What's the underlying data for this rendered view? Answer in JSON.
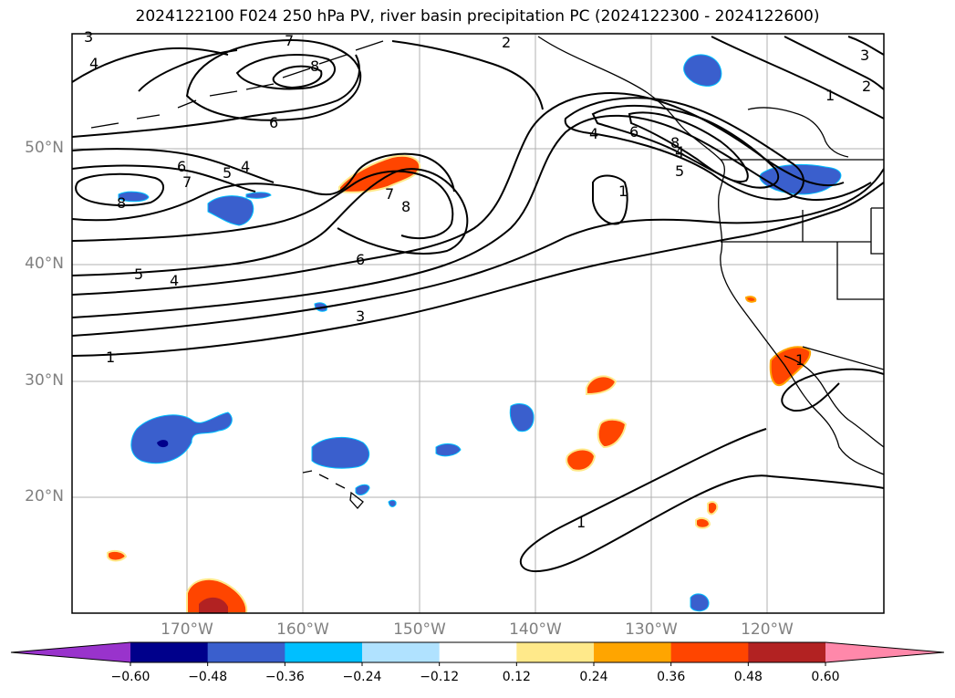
{
  "title": "2024122100 F024 250 hPa PV, river basin precipitation PC (2024122300 - 2024122600)",
  "lat_labels": [
    "50°N",
    "40°N",
    "30°N",
    "20°N"
  ],
  "lon_labels": [
    "170°W",
    "160°W",
    "150°W",
    "140°W",
    "130°W",
    "120°W"
  ],
  "contour_labels": [
    "3",
    "4",
    "8",
    "7",
    "2",
    "3",
    "1",
    "2",
    "6",
    "4",
    "6",
    "6",
    "8",
    "5",
    "4",
    "7",
    "8",
    "7",
    "8",
    "4",
    "1",
    "5",
    "6",
    "5",
    "4",
    "3",
    "1",
    "1",
    "1"
  ],
  "colorbar": {
    "ticks": [
      "−0.60",
      "−0.48",
      "−0.36",
      "−0.24",
      "−0.12",
      "0.12",
      "0.24",
      "0.36",
      "0.48",
      "0.60"
    ],
    "colors": [
      "#9933cc",
      "#00008b",
      "#3a5fcd",
      "#00bfff",
      "#b0e2ff",
      "#ffffff",
      "#ffe98a",
      "#ffa500",
      "#ff4500",
      "#b22222",
      "#ff88aa"
    ]
  },
  "colors": {
    "grid": "#b0b0b0",
    "contour": "#000000",
    "blue_fill": "#3a5fcd",
    "orange_fill": "#ff4500",
    "dark_red_fill": "#b22222"
  }
}
